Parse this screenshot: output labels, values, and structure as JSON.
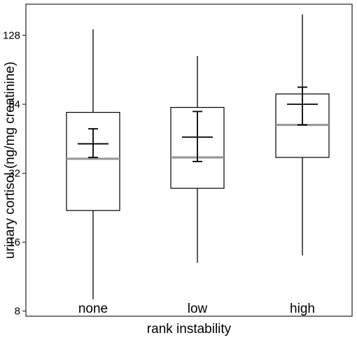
{
  "chart_data": {
    "type": "box",
    "xlabel": "rank instability",
    "ylabel": "urinary cortisol (ng/mg creatinine)",
    "y_scale": "log2",
    "ylim": [
      7.6,
      175
    ],
    "y_ticks": [
      8,
      16,
      32,
      64,
      128
    ],
    "y_tick_labels": [
      "8",
      "16",
      "32",
      "64",
      "128"
    ],
    "grid": false,
    "categories": [
      "none",
      "low",
      "high"
    ],
    "boxes": [
      {
        "category": "none",
        "whisker_low": 9.0,
        "q1": 22.0,
        "median": 37.0,
        "q3": 59.0,
        "whisker_high": 136.0,
        "mean": 43.0,
        "mean_ci_low": 37.5,
        "mean_ci_high": 50.0
      },
      {
        "category": "low",
        "whisker_low": 13.0,
        "q1": 27.5,
        "median": 37.5,
        "q3": 62.0,
        "whisker_high": 104.0,
        "mean": 46.0,
        "mean_ci_low": 36.0,
        "mean_ci_high": 59.5
      },
      {
        "category": "high",
        "whisker_low": 14.0,
        "q1": 37.5,
        "median": 52.0,
        "q3": 71.0,
        "whisker_high": 158.0,
        "mean": 64.0,
        "mean_ci_low": 52.0,
        "mean_ci_high": 76.0
      }
    ],
    "colors": {
      "box_edge": "#000000",
      "box_fill": "#ffffff",
      "median": "#999999",
      "whisker": "#000000",
      "mean_marker": "#000000",
      "panel_border": "#333333"
    }
  }
}
